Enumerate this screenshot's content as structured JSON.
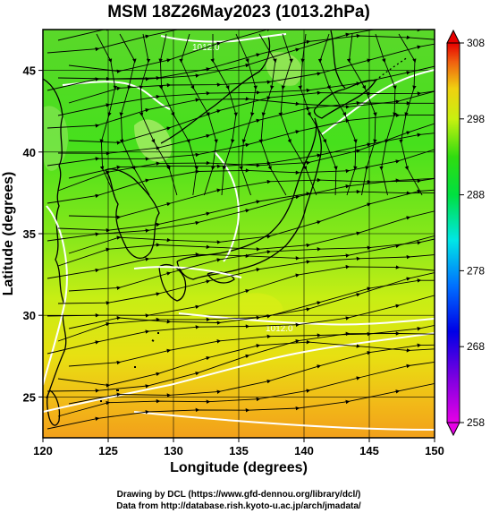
{
  "title": "MSM 18Z26May2023 (1013.2hPa)",
  "xlabel": "Longitude (degrees)",
  "ylabel": "Latitude  (degrees)",
  "x_ticks": [
    "120",
    "125",
    "130",
    "135",
    "140",
    "145",
    "150"
  ],
  "y_ticks": [
    "25",
    "30",
    "35",
    "40",
    "45"
  ],
  "colorbar_ticks": [
    "308",
    "298",
    "288",
    "278",
    "268",
    "258"
  ],
  "isobar_labels": [
    "1012.0",
    "1012.0"
  ],
  "credit_line1": "Drawing by DCL (https://www.gfd-dennou.org/library/dcl/)",
  "credit_line2": "Data from http://database.rish.kyoto-u.ac.jp/arch/jmadata/",
  "map_data": {
    "lon_range": [
      120,
      150
    ],
    "lat_range": [
      22.5,
      47.5
    ],
    "colorbar_range": [
      258,
      308
    ],
    "colors": {
      "warm": "#f2a21a",
      "mid": "#dff013",
      "green": "#3ee21a",
      "coast": "#000000",
      "isobar": "#ffffff",
      "streamline": "#000000"
    }
  }
}
